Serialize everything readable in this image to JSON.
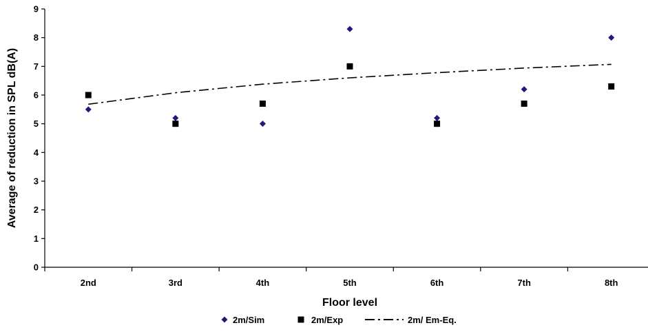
{
  "chart_data": {
    "type": "scatter",
    "categories": [
      "2nd",
      "3rd",
      "4th",
      "5th",
      "6th",
      "7th",
      "8th"
    ],
    "xlabel": "Floor level",
    "ylabel": "Average of reduction in SPL dB(A)",
    "ylim": [
      0,
      9
    ],
    "yticks": [
      "0",
      "1",
      "2",
      "3",
      "4",
      "5",
      "6",
      "7",
      "8",
      "9"
    ],
    "grid": false,
    "legend_position": "bottom",
    "series": [
      {
        "name": "2m/Sim",
        "marker": "diamond",
        "color": "#1F1A7A",
        "values": [
          5.5,
          5.2,
          5.0,
          8.3,
          5.2,
          6.2,
          8.0
        ]
      },
      {
        "name": "2m/Exp",
        "marker": "square",
        "color": "#000000",
        "values": [
          6.0,
          5.0,
          5.7,
          7.0,
          5.0,
          5.7,
          6.3
        ]
      },
      {
        "name": "2m/ Em-Eq.",
        "marker": "dash-dot-line",
        "color": "#000000",
        "values": [
          5.68,
          6.08,
          6.38,
          6.6,
          6.78,
          6.94,
          7.07
        ]
      }
    ]
  }
}
